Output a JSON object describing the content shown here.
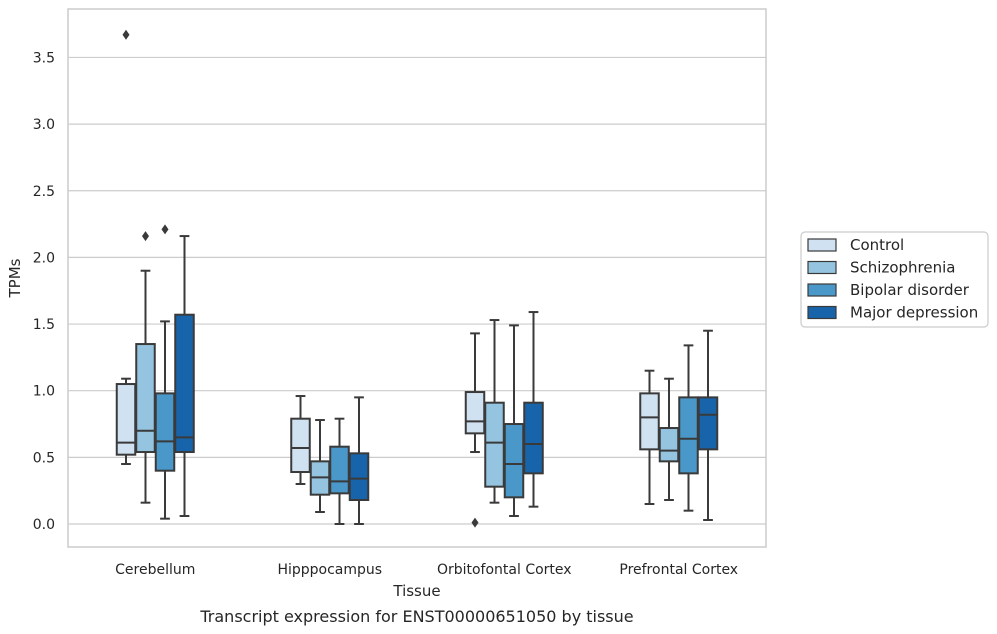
{
  "caption": "Transcript expression for ENST00000651050 by tissue",
  "chart_data": {
    "type": "box",
    "xlabel": "Tissue",
    "ylabel": "TPMs",
    "ylim": [
      -0.17,
      3.87
    ],
    "yticks": [
      0.0,
      0.5,
      1.0,
      1.5,
      2.0,
      2.5,
      3.0,
      3.5
    ],
    "ytick_labels": [
      "0.0",
      "0.5",
      "1.0",
      "1.5",
      "2.0",
      "2.5",
      "3.0",
      "3.5"
    ],
    "grid": "horizontal",
    "legend_position": "right",
    "categories": [
      "Cerebellum",
      "Hipppocampus",
      "Orbitofontal Cortex",
      "Prefrontal Cortex"
    ],
    "series": [
      {
        "name": "Control",
        "color": "#d0e1f2",
        "boxes": [
          {
            "whisker_low": 0.45,
            "q1": 0.52,
            "median": 0.61,
            "q3": 1.05,
            "whisker_high": 1.09,
            "outliers": [
              3.67
            ]
          },
          {
            "whisker_low": 0.3,
            "q1": 0.39,
            "median": 0.57,
            "q3": 0.79,
            "whisker_high": 0.96,
            "outliers": []
          },
          {
            "whisker_low": 0.54,
            "q1": 0.68,
            "median": 0.77,
            "q3": 0.99,
            "whisker_high": 1.43,
            "outliers": [
              0.01
            ]
          },
          {
            "whisker_low": 0.15,
            "q1": 0.56,
            "median": 0.8,
            "q3": 0.98,
            "whisker_high": 1.15,
            "outliers": []
          }
        ]
      },
      {
        "name": "Schizophrenia",
        "color": "#94c4df",
        "boxes": [
          {
            "whisker_low": 0.16,
            "q1": 0.54,
            "median": 0.7,
            "q3": 1.35,
            "whisker_high": 1.9,
            "outliers": [
              2.16
            ]
          },
          {
            "whisker_low": 0.09,
            "q1": 0.22,
            "median": 0.35,
            "q3": 0.47,
            "whisker_high": 0.78,
            "outliers": []
          },
          {
            "whisker_low": 0.16,
            "q1": 0.28,
            "median": 0.61,
            "q3": 0.91,
            "whisker_high": 1.53,
            "outliers": []
          },
          {
            "whisker_low": 0.18,
            "q1": 0.47,
            "median": 0.55,
            "q3": 0.72,
            "whisker_high": 1.09,
            "outliers": []
          }
        ]
      },
      {
        "name": "Bipolar disorder",
        "color": "#4a98c9",
        "boxes": [
          {
            "whisker_low": 0.04,
            "q1": 0.4,
            "median": 0.62,
            "q3": 0.98,
            "whisker_high": 1.52,
            "outliers": [
              2.21
            ]
          },
          {
            "whisker_low": 0.0,
            "q1": 0.23,
            "median": 0.32,
            "q3": 0.58,
            "whisker_high": 0.79,
            "outliers": []
          },
          {
            "whisker_low": 0.06,
            "q1": 0.2,
            "median": 0.45,
            "q3": 0.75,
            "whisker_high": 1.49,
            "outliers": []
          },
          {
            "whisker_low": 0.1,
            "q1": 0.38,
            "median": 0.64,
            "q3": 0.95,
            "whisker_high": 1.34,
            "outliers": []
          }
        ]
      },
      {
        "name": "Major depression",
        "color": "#1764ab",
        "boxes": [
          {
            "whisker_low": 0.06,
            "q1": 0.54,
            "median": 0.65,
            "q3": 1.57,
            "whisker_high": 2.16,
            "outliers": []
          },
          {
            "whisker_low": 0.0,
            "q1": 0.18,
            "median": 0.34,
            "q3": 0.53,
            "whisker_high": 0.95,
            "outliers": []
          },
          {
            "whisker_low": 0.13,
            "q1": 0.38,
            "median": 0.6,
            "q3": 0.91,
            "whisker_high": 1.59,
            "outliers": []
          },
          {
            "whisker_low": 0.03,
            "q1": 0.56,
            "median": 0.82,
            "q3": 0.95,
            "whisker_high": 1.45,
            "outliers": []
          }
        ]
      }
    ]
  }
}
